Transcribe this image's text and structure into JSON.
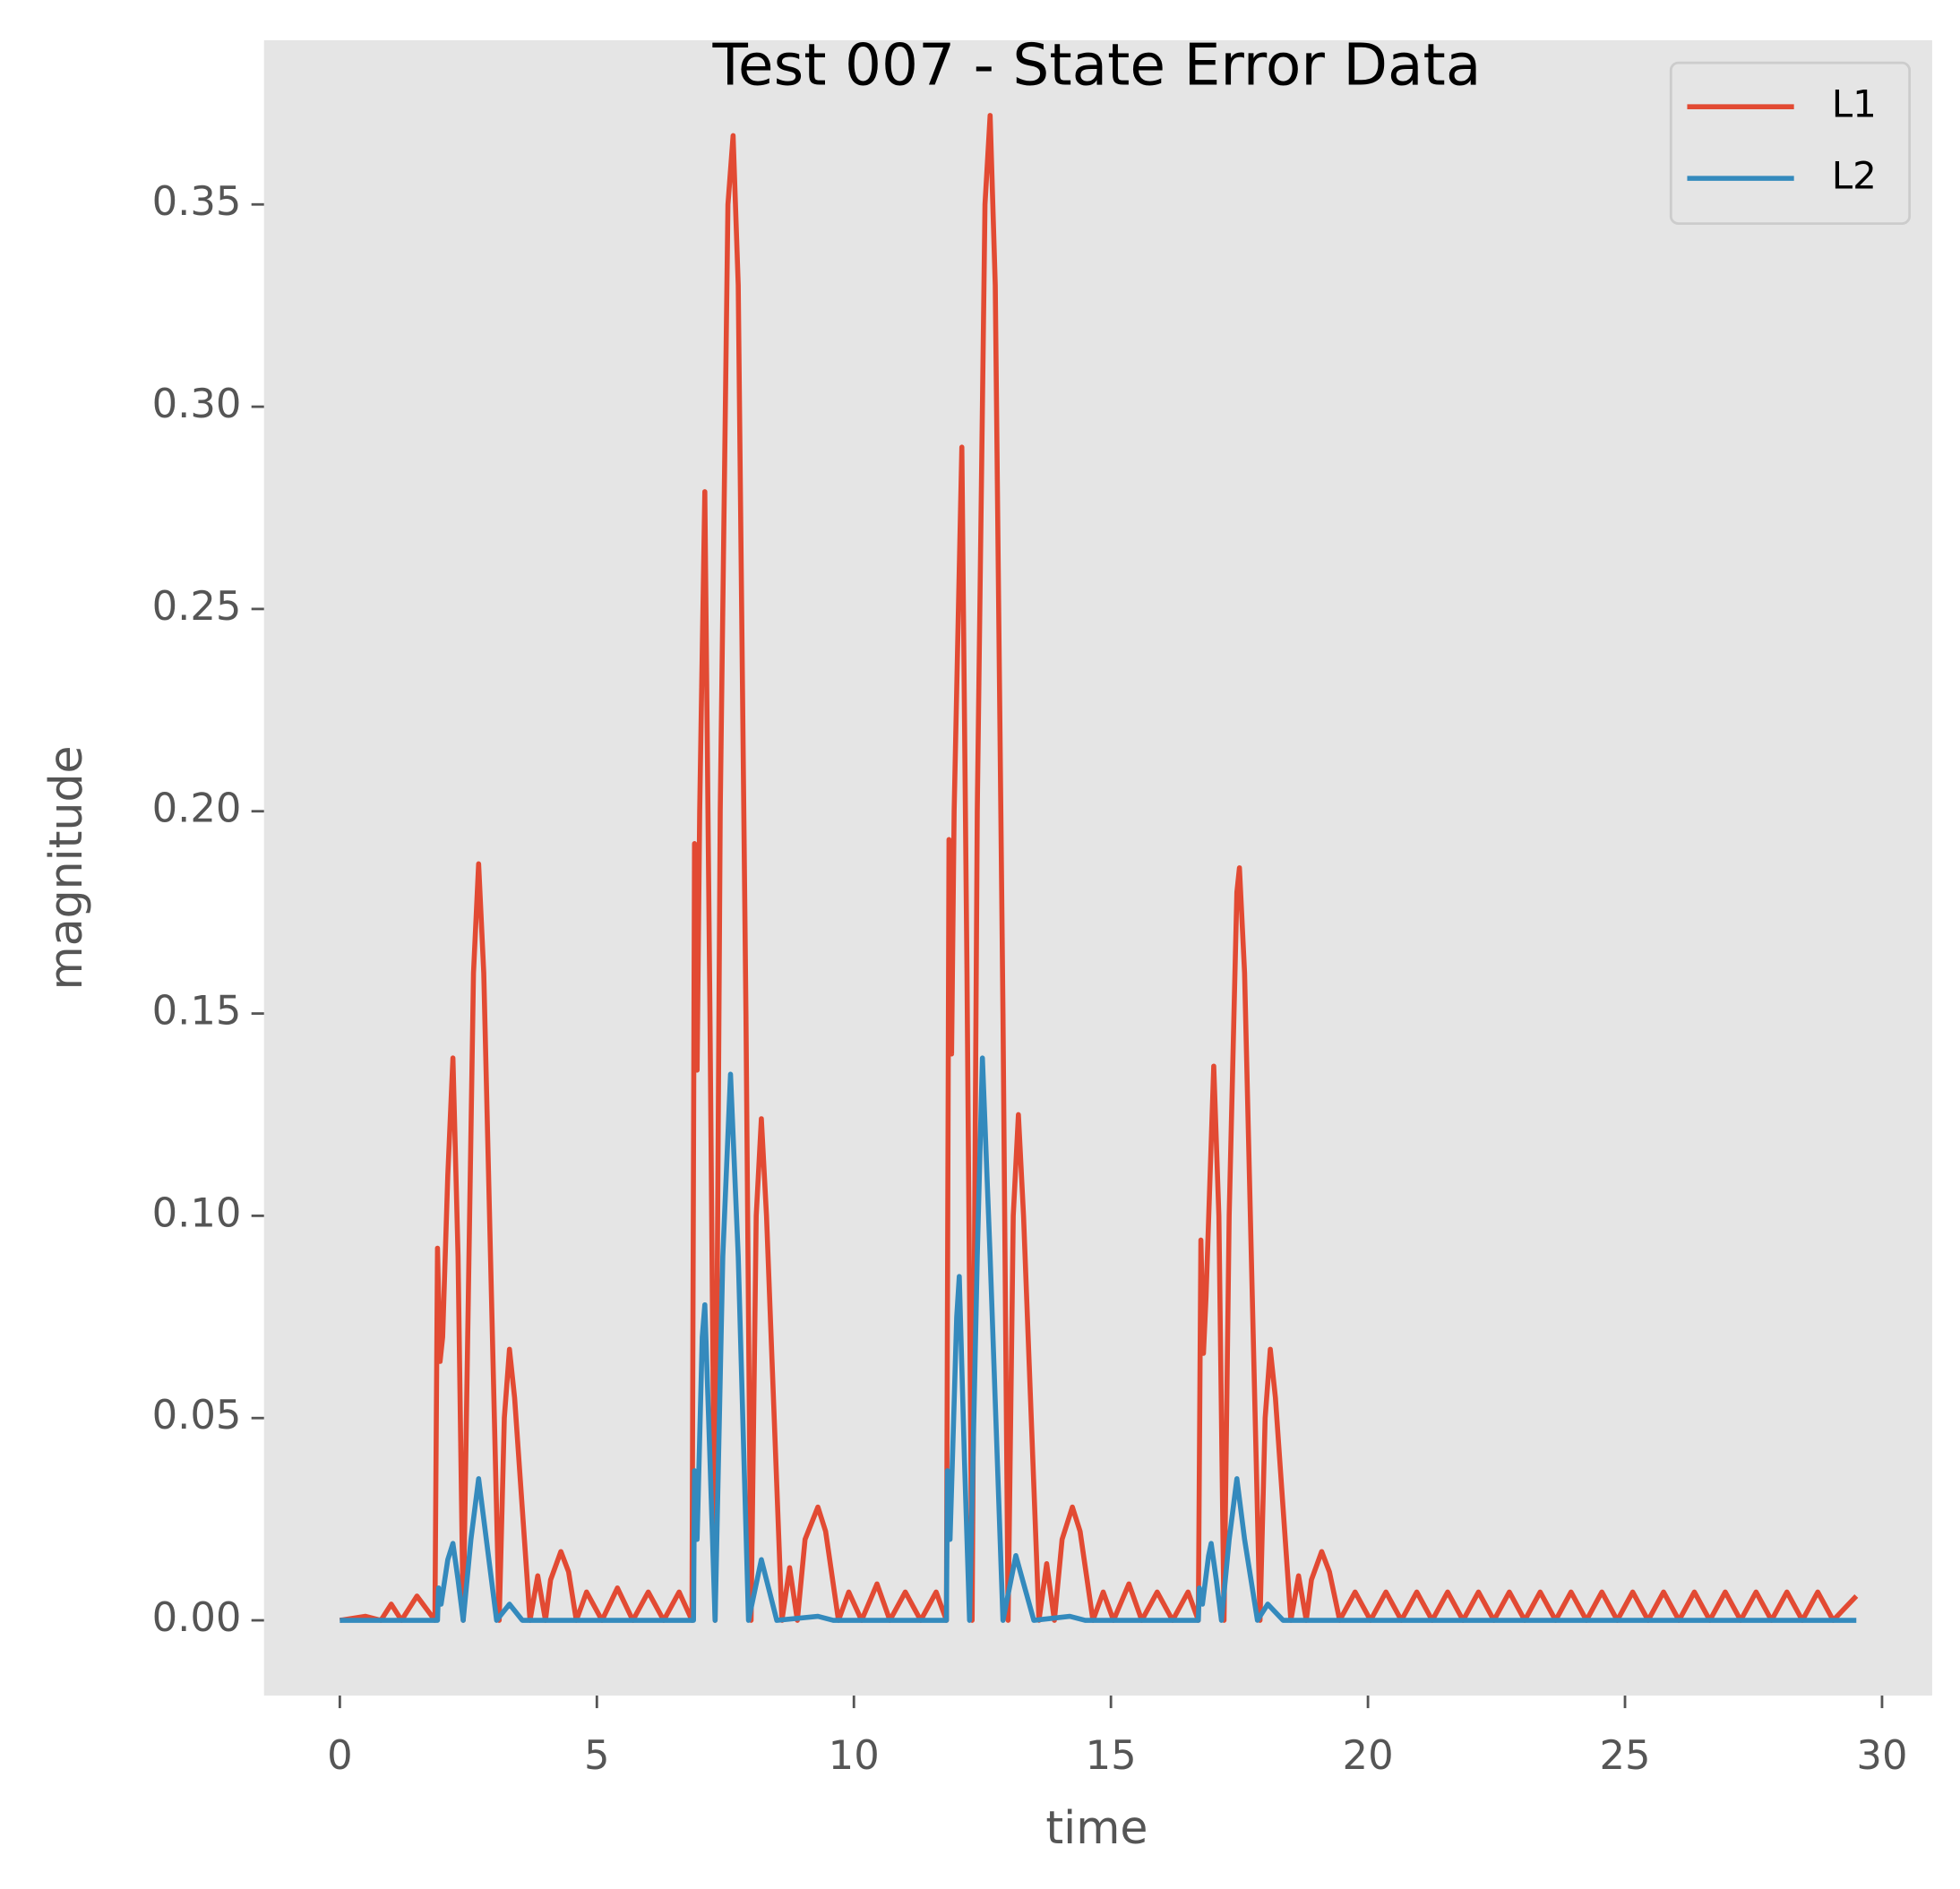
{
  "chart_data": {
    "type": "line",
    "title": "Test 007 - State Error Data",
    "xlabel": "time",
    "ylabel": "magnitude",
    "xlim": [
      -1.475,
      30.975
    ],
    "ylim": [
      -0.0186,
      0.3906
    ],
    "xticks": [
      0,
      5,
      10,
      15,
      20,
      25,
      30
    ],
    "yticks": [
      {
        "value": 0,
        "label": "0.00"
      },
      0.05,
      {
        "value": 0.1,
        "label": "0.10"
      },
      0.15,
      {
        "value": 0.2,
        "label": "0.20"
      },
      0.25,
      {
        "value": 0.3,
        "label": "0.30"
      },
      0.35
    ],
    "grid": false,
    "legend": "upper right",
    "series": [
      {
        "name": "L1",
        "color": "#e24a33",
        "x": [
          0,
          0.5,
          0.8,
          1.0,
          1.2,
          1.5,
          1.85,
          1.9,
          1.95,
          2.0,
          2.1,
          2.2,
          2.3,
          2.4,
          2.5,
          2.6,
          2.7,
          2.8,
          2.95,
          3.1,
          3.2,
          3.3,
          3.4,
          3.7,
          3.85,
          4.0,
          4.1,
          4.3,
          4.45,
          4.6,
          4.8,
          5.1,
          5.4,
          5.7,
          6.0,
          6.3,
          6.6,
          6.85,
          6.9,
          6.95,
          7.0,
          7.1,
          7.2,
          7.3,
          7.4,
          7.55,
          7.65,
          7.75,
          7.9,
          8.0,
          8.1,
          8.2,
          8.3,
          8.6,
          8.75,
          8.9,
          9.05,
          9.3,
          9.45,
          9.7,
          9.9,
          10.15,
          10.45,
          10.7,
          11.0,
          11.3,
          11.6,
          11.8,
          11.85,
          11.9,
          11.95,
          12.1,
          12.2,
          12.3,
          12.4,
          12.55,
          12.65,
          12.75,
          12.9,
          13.0,
          13.1,
          13.2,
          13.3,
          13.6,
          13.75,
          13.9,
          14.05,
          14.25,
          14.4,
          14.65,
          14.85,
          15.05,
          15.35,
          15.6,
          15.9,
          16.2,
          16.5,
          16.7,
          16.75,
          16.8,
          16.85,
          17.0,
          17.1,
          17.2,
          17.3,
          17.45,
          17.5,
          17.6,
          17.75,
          17.9,
          18.0,
          18.1,
          18.2,
          18.5,
          18.65,
          18.8,
          18.9,
          19.1,
          19.25,
          19.45,
          19.75,
          20.05,
          20.35,
          20.65,
          20.95,
          21.25,
          21.55,
          21.85,
          22.15,
          22.45,
          22.75,
          23.05,
          23.35,
          23.65,
          23.95,
          24.25,
          24.55,
          24.85,
          25.15,
          25.45,
          25.75,
          26.05,
          26.35,
          26.65,
          26.95,
          27.25,
          27.55,
          27.85,
          28.15,
          28.45,
          28.75,
          29.05,
          29.5
        ],
        "values": [
          0,
          0.001,
          0,
          0.004,
          0,
          0.006,
          0,
          0.092,
          0.064,
          0.07,
          0.11,
          0.139,
          0.09,
          0,
          0.08,
          0.16,
          0.187,
          0.16,
          0.08,
          0,
          0.05,
          0.067,
          0.055,
          0,
          0.011,
          0,
          0.01,
          0.017,
          0.012,
          0,
          0.007,
          0,
          0.008,
          0,
          0.007,
          0,
          0.007,
          0,
          0.192,
          0.136,
          0.2,
          0.279,
          0.15,
          0,
          0.2,
          0.35,
          0.367,
          0.33,
          0.15,
          0,
          0.1,
          0.124,
          0.1,
          0,
          0.013,
          0,
          0.02,
          0.028,
          0.022,
          0,
          0.007,
          0,
          0.009,
          0,
          0.007,
          0,
          0.007,
          0,
          0.193,
          0.14,
          0.2,
          0.29,
          0.16,
          0,
          0.2,
          0.35,
          0.372,
          0.33,
          0.15,
          0,
          0.1,
          0.125,
          0.1,
          0,
          0.014,
          0,
          0.02,
          0.028,
          0.022,
          0,
          0.007,
          0,
          0.009,
          0,
          0.007,
          0,
          0.007,
          0,
          0.094,
          0.066,
          0.08,
          0.137,
          0.1,
          0,
          0.1,
          0.18,
          0.186,
          0.16,
          0.08,
          0,
          0.05,
          0.067,
          0.055,
          0,
          0.011,
          0,
          0.01,
          0.017,
          0.012,
          0,
          0.007,
          0,
          0.007,
          0,
          0.007,
          0,
          0.007,
          0,
          0.007,
          0,
          0.007,
          0,
          0.007,
          0,
          0.007,
          0,
          0.007,
          0,
          0.007,
          0,
          0.007,
          0,
          0.007,
          0,
          0.007,
          0,
          0.007,
          0,
          0.007,
          0,
          0.007,
          0,
          0.006
        ]
      },
      {
        "name": "L2",
        "color": "#348abd",
        "x": [
          0,
          1.9,
          1.92,
          1.97,
          2.1,
          2.2,
          2.3,
          2.4,
          2.55,
          2.7,
          2.85,
          3.05,
          3.3,
          3.55,
          6.88,
          6.9,
          6.95,
          7.05,
          7.1,
          7.2,
          7.3,
          7.45,
          7.6,
          7.75,
          7.95,
          8.2,
          8.5,
          9.3,
          9.6,
          11.8,
          11.82,
          11.87,
          12.0,
          12.05,
          12.15,
          12.25,
          12.4,
          12.5,
          12.65,
          12.9,
          13.15,
          13.5,
          14.2,
          14.5,
          16.7,
          16.72,
          16.78,
          16.9,
          16.95,
          17.05,
          17.15,
          17.3,
          17.45,
          17.6,
          17.85,
          18.05,
          18.35,
          29.5
        ],
        "values": [
          0,
          0,
          0.008,
          0.004,
          0.015,
          0.019,
          0.01,
          0,
          0.02,
          0.035,
          0.02,
          0,
          0.004,
          0,
          0,
          0.037,
          0.02,
          0.07,
          0.078,
          0.04,
          0,
          0.09,
          0.135,
          0.09,
          0,
          0.015,
          0,
          0.001,
          0,
          0,
          0.037,
          0.02,
          0.075,
          0.085,
          0.04,
          0,
          0.09,
          0.139,
          0.09,
          0,
          0.016,
          0,
          0.001,
          0,
          0,
          0.008,
          0.004,
          0.016,
          0.019,
          0.01,
          0,
          0.02,
          0.035,
          0.02,
          0,
          0.004,
          0,
          0
        ]
      }
    ]
  }
}
